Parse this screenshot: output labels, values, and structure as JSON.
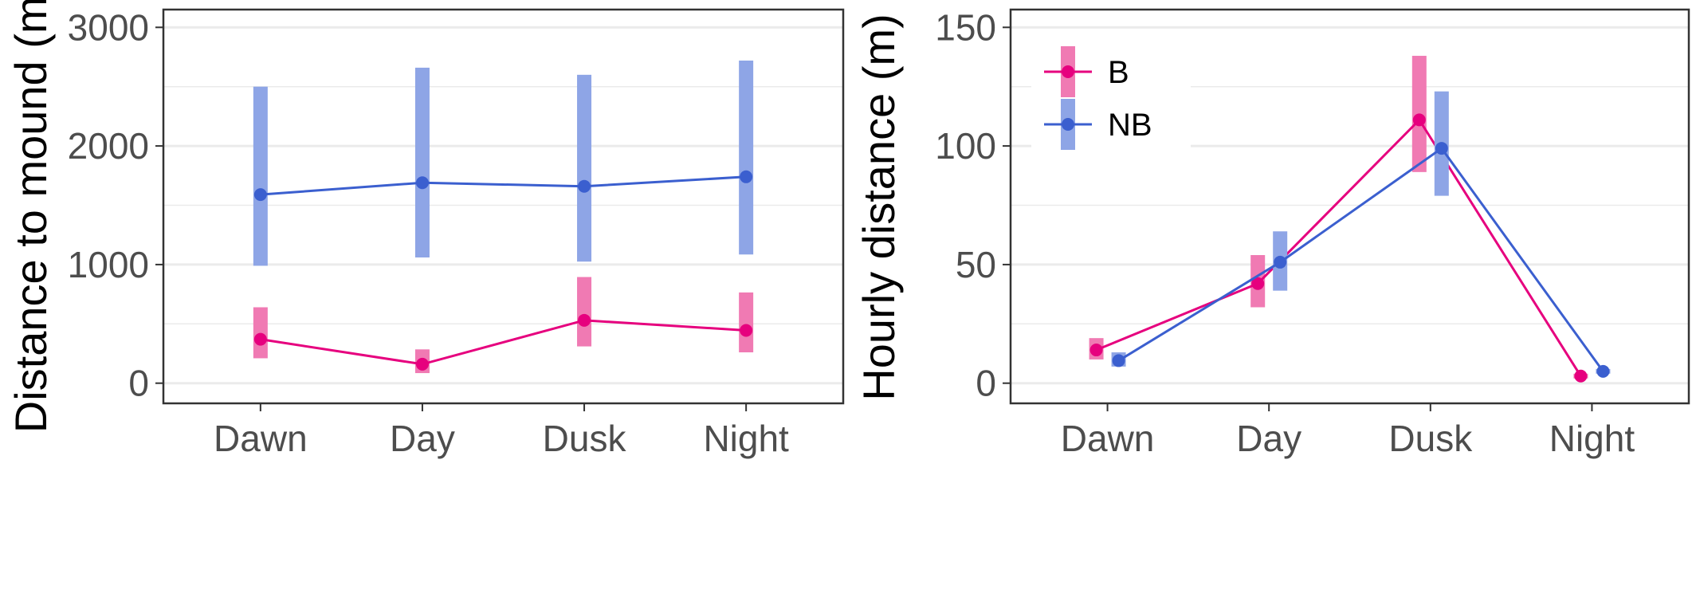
{
  "colors": {
    "B": "#e6007e",
    "NB": "#3b5fcf",
    "B_error": "#f07ab3",
    "NB_error": "#8ea5e6",
    "grid": "#ebebeb",
    "panel_border": "#333333"
  },
  "chart_data": [
    {
      "type": "line",
      "title": "",
      "xlabel": "",
      "ylabel": "Distance to mound (m)",
      "categories": [
        "Dawn",
        "Day",
        "Dusk",
        "Night"
      ],
      "ylim": [
        -170,
        3150
      ],
      "yticks": [
        0,
        1000,
        2000,
        3000
      ],
      "y_tick_labels": [
        "0",
        "1000",
        "2000",
        "3000"
      ],
      "grid": true,
      "legend": "none",
      "series": [
        {
          "key": "B",
          "values": [
            370,
            160,
            530,
            445
          ],
          "lower": [
            210,
            85,
            310,
            260
          ],
          "upper": [
            640,
            285,
            895,
            765
          ]
        },
        {
          "key": "NB",
          "values": [
            1590,
            1690,
            1660,
            1740
          ],
          "lower": [
            990,
            1060,
            1025,
            1085
          ],
          "upper": [
            2500,
            2660,
            2600,
            2720
          ]
        }
      ]
    },
    {
      "type": "line",
      "title": "",
      "xlabel": "",
      "ylabel": "Hourly distance (m)",
      "categories": [
        "Dawn",
        "Day",
        "Dusk",
        "Night"
      ],
      "ylim": [
        -8.5,
        157.5
      ],
      "yticks": [
        0,
        50,
        100,
        150
      ],
      "y_tick_labels": [
        "0",
        "50",
        "100",
        "150"
      ],
      "grid": true,
      "legend": "top-left",
      "series": [
        {
          "name": "B",
          "values": [
            14,
            42,
            111,
            3
          ],
          "lower": [
            10,
            32,
            89,
            2
          ],
          "upper": [
            19,
            54,
            138,
            4
          ]
        },
        {
          "name": "NB",
          "values": [
            9.5,
            51,
            99,
            5
          ],
          "lower": [
            7,
            39,
            79,
            4
          ],
          "upper": [
            13,
            64,
            123,
            6
          ]
        }
      ]
    }
  ]
}
